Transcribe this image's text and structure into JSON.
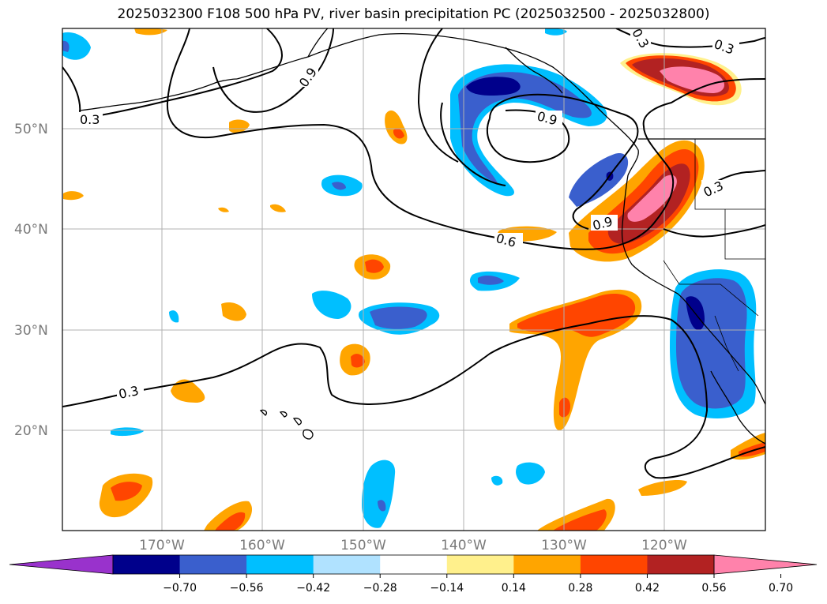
{
  "title": "2025032300 F108 500 hPa PV, river basin precipitation PC (2025032500 - 2025032800)",
  "map": {
    "lat_labels": [
      "50°N",
      "40°N",
      "30°N",
      "20°N"
    ],
    "lon_labels": [
      "170°W",
      "160°W",
      "150°W",
      "140°W",
      "130°W",
      "120°W"
    ],
    "contour_labels": [
      "0.3",
      "0.9",
      "0.3",
      "0.9",
      "0.3",
      "0.9",
      "0.3",
      "0.6",
      "0.3"
    ],
    "colors": {
      "neg_very_strong": "#00008b",
      "neg_strong": "#3a5fcd",
      "neg_medium": "#00bfff",
      "neg_weak": "#b0e2ff",
      "pos_weak": "#fff08c",
      "pos_medium": "#ffa500",
      "pos_strong": "#ff4500",
      "pos_very_strong": "#b22222",
      "pos_extreme": "#ff82ab",
      "neg_extreme": "#9932cc"
    }
  },
  "colorbar": {
    "ticks": [
      "−0.70",
      "−0.56",
      "−0.42",
      "−0.28",
      "−0.14",
      "0.14",
      "0.28",
      "0.42",
      "0.56",
      "0.70"
    ],
    "segment_colors": [
      "#00008b",
      "#3a5fcd",
      "#00bfff",
      "#b0e2ff",
      "#ffffff",
      "#fff08c",
      "#ffa500",
      "#ff4500",
      "#b22222"
    ],
    "under_color": "#9932cc",
    "over_color": "#ff82ab"
  }
}
